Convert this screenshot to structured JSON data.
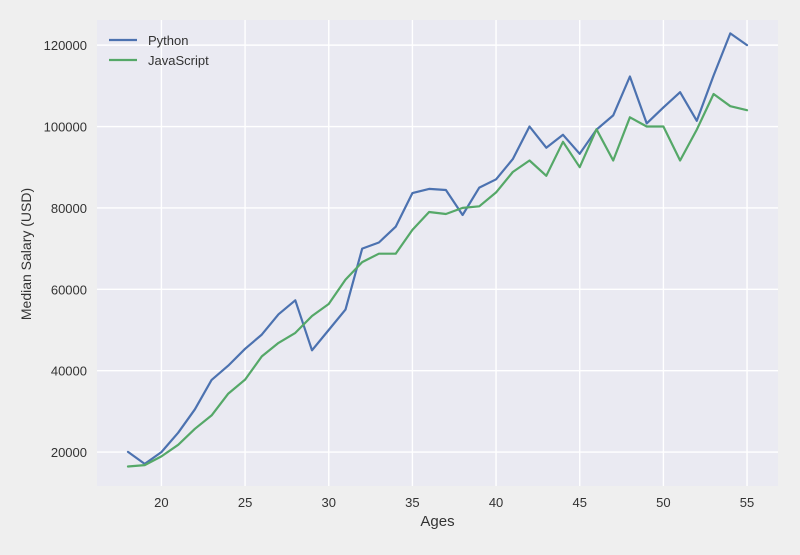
{
  "chart_data": {
    "type": "line",
    "title": "",
    "xlabel": "Ages",
    "ylabel": "Median Salary (USD)",
    "x": [
      18,
      19,
      20,
      21,
      22,
      23,
      24,
      25,
      26,
      27,
      28,
      29,
      30,
      31,
      32,
      33,
      34,
      35,
      36,
      37,
      38,
      39,
      40,
      41,
      42,
      43,
      44,
      45,
      46,
      47,
      48,
      49,
      50,
      51,
      52,
      53,
      54,
      55
    ],
    "series": [
      {
        "name": "Python",
        "color": "#4c72b0",
        "values": [
          20046,
          17100,
          20000,
          24744,
          30500,
          37732,
          41247,
          45372,
          48876,
          53850,
          57287,
          45000,
          50000,
          55000,
          70000,
          71496,
          75370,
          83640,
          84666,
          84392,
          78254,
          85000,
          87038,
          91991,
          100000,
          94796,
          97962,
          93302,
          99240,
          102736,
          112285,
          100771,
          104708,
          108423,
          101407,
          112542,
          122870,
          120000
        ]
      },
      {
        "name": "JavaScript",
        "color": "#55a868",
        "values": [
          16446,
          16791,
          18942,
          21780,
          25704,
          29000,
          34372,
          37810,
          43515,
          46823,
          49293,
          53437,
          56373,
          62375,
          66674,
          68745,
          68746,
          74583,
          79000,
          78508,
          79996,
          80403,
          83820,
          88833,
          91660,
          87892,
          96243,
          90000,
          99313,
          91660,
          102264,
          100000,
          100000,
          91660,
          99240,
          108000,
          105000,
          104000
        ]
      }
    ],
    "xlim": [
      16.15,
      56.85
    ],
    "ylim": [
      11658,
      126175
    ],
    "xticks": [
      20,
      25,
      30,
      35,
      40,
      45,
      50,
      55
    ],
    "yticks": [
      20000,
      40000,
      60000,
      80000,
      100000,
      120000
    ],
    "grid": true,
    "legend_position": "top-left",
    "background_color": "#eaeaf2",
    "figure_color": "#efefef",
    "grid_color": "#ffffff"
  }
}
